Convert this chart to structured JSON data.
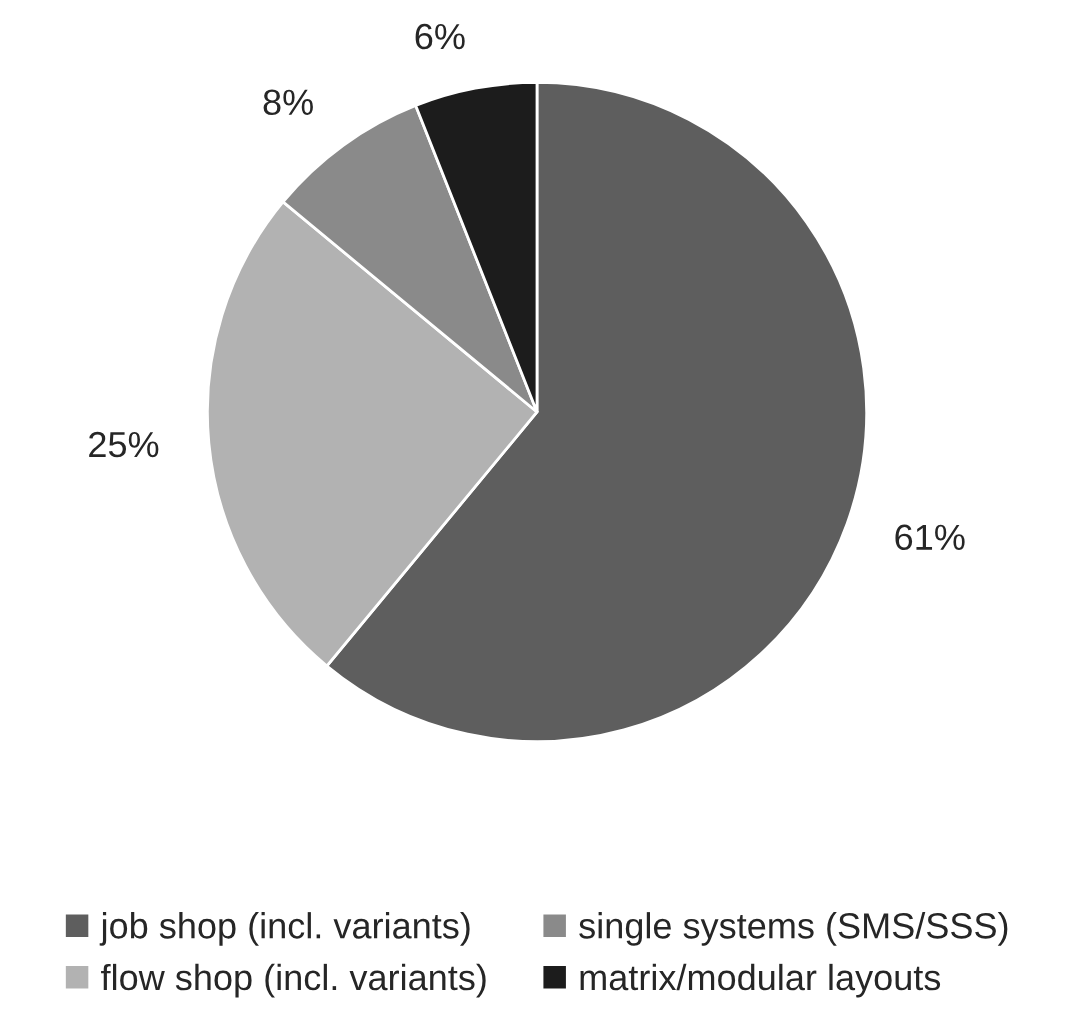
{
  "chart_data": {
    "type": "pie",
    "categories": [
      "job shop (incl. variants)",
      "flow shop (incl. variants)",
      "single systems (SMS/SSS)",
      "matrix/modular layouts"
    ],
    "values": [
      61,
      25,
      8,
      6
    ],
    "colors": [
      "#5e5e5e",
      "#b2b2b2",
      "#8a8a8a",
      "#1c1c1c"
    ],
    "value_labels": [
      "61%",
      "25%",
      "8%",
      "6%"
    ],
    "legend": "bottom"
  }
}
